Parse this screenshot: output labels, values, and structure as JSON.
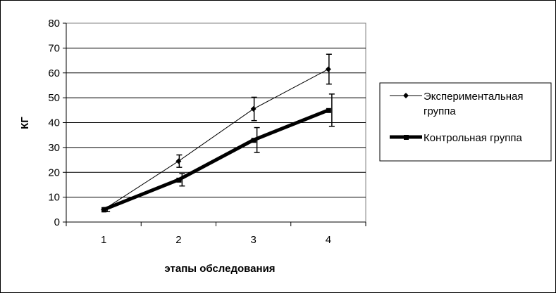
{
  "chart_data": {
    "type": "line",
    "xlabel": "этапы обследования",
    "ylabel": "КГ",
    "categories": [
      "1",
      "2",
      "3",
      "4"
    ],
    "ylim": [
      0,
      80
    ],
    "yticks": [
      0,
      10,
      20,
      30,
      40,
      50,
      60,
      70,
      80
    ],
    "grid": true,
    "legend_position": "right",
    "series": [
      {
        "name": "Экспериментальная группа",
        "legend_lines": [
          "Экспериментальная",
          "группа"
        ],
        "values": [
          5,
          24.5,
          45.5,
          61.5
        ],
        "error": [
          0.8,
          2.5,
          4.7,
          6
        ],
        "marker": "diamond",
        "color": "#000000",
        "line": "thin"
      },
      {
        "name": "Контрольная группа",
        "legend_lines": [
          "Контрольная группа"
        ],
        "values": [
          5,
          17,
          33,
          45
        ],
        "error": [
          0.8,
          2.5,
          5,
          6.5
        ],
        "marker": "square",
        "color": "#000000",
        "line": "thick"
      }
    ]
  }
}
